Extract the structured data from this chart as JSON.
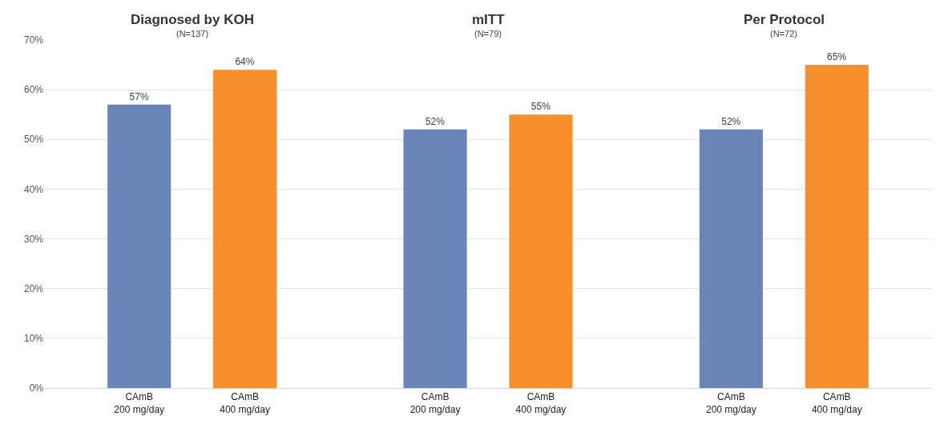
{
  "chart_data": [
    {
      "type": "bar",
      "title": "Diagnosed by KOH",
      "subtitle": "(N=137)",
      "categories": [
        "CAmB\n200 mg/day",
        "CAmB\n400 mg/day"
      ],
      "values": [
        57,
        64
      ],
      "colors": [
        "#6a86b8",
        "#f78f2b"
      ],
      "value_labels": [
        "57%",
        "64%"
      ],
      "ylim": [
        0,
        70
      ],
      "yticks": [
        {
          "value": 0,
          "label": "0%"
        },
        {
          "value": 10,
          "label": "10%"
        },
        {
          "value": 20,
          "label": "20%"
        },
        {
          "value": 30,
          "label": "30%"
        },
        {
          "value": 40,
          "label": "40%"
        },
        {
          "value": 50,
          "label": "50%"
        },
        {
          "value": 60,
          "label": "60%"
        },
        {
          "value": 70,
          "label": "70%"
        }
      ],
      "grid": "y"
    },
    {
      "type": "bar",
      "title": "mITT",
      "subtitle": "(N=79)",
      "categories": [
        "CAmB\n200 mg/day",
        "CAmB\n400 mg/day"
      ],
      "values": [
        52,
        55
      ],
      "colors": [
        "#6a86b8",
        "#f78f2b"
      ],
      "value_labels": [
        "52%",
        "55%"
      ],
      "ylim": [
        0,
        70
      ],
      "grid": "y",
      "tick_labels": "x"
    },
    {
      "type": "bar",
      "title": "Per Protocol",
      "subtitle": "(N=72)",
      "categories": [
        "CAmB\n200 mg/day",
        "CAmB\n400 mg/day"
      ],
      "values": [
        52,
        65
      ],
      "colors": [
        "#6a86b8",
        "#f78f2b"
      ],
      "value_labels": [
        "52%",
        "65%"
      ],
      "ylim": [
        0,
        70
      ],
      "grid": "y",
      "tick_labels": "x"
    }
  ]
}
